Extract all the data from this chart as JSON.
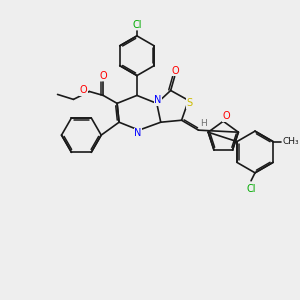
{
  "background_color": "#eeeeee",
  "bond_color": "#1a1a1a",
  "atom_colors": {
    "N": "#0000ff",
    "O": "#ff0000",
    "S": "#ccbb00",
    "Cl_top": "#00aa00",
    "Cl_bot": "#00aa00",
    "H": "#707070"
  },
  "font_size": 7.0
}
